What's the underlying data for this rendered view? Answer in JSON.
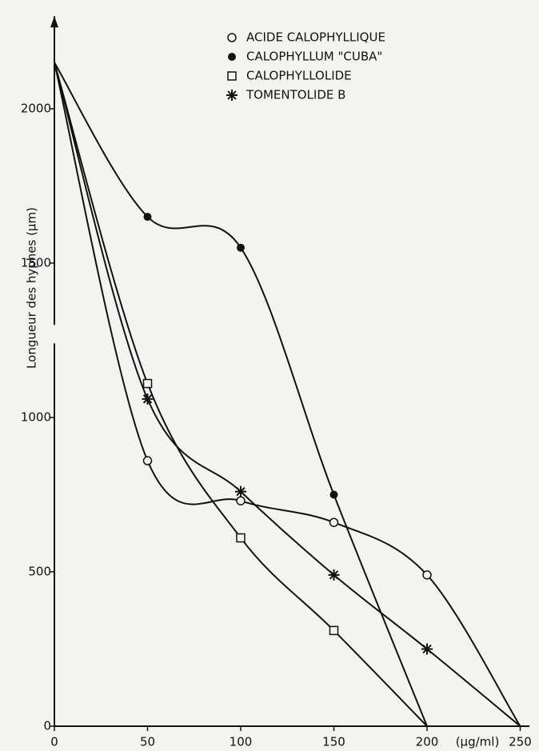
{
  "chart_data": {
    "type": "line",
    "x_label": "(µg/ml)",
    "y_label": "Longueur des hyphes (µm)",
    "xlim": [
      0,
      255
    ],
    "ylim": [
      0,
      2300
    ],
    "xticks": [
      0,
      50,
      100,
      150,
      200,
      250
    ],
    "yticks": [
      0,
      500,
      1000,
      1500,
      2000
    ],
    "series": [
      {
        "name": "ACIDE CALOPHYLLIQUE",
        "color": "#111111",
        "marker": "open-circle",
        "x": [
          0,
          50,
          100,
          150,
          200,
          250
        ],
        "values": [
          2150,
          860,
          730,
          660,
          490,
          0
        ]
      },
      {
        "name": "CALOPHYLLUM \"CUBA\"",
        "color": "#111111",
        "marker": "filled-circle",
        "x": [
          0,
          50,
          100,
          150,
          200
        ],
        "values": [
          2150,
          1650,
          1550,
          750,
          0
        ]
      },
      {
        "name": "CALOPHYLLOLIDE",
        "color": "#111111",
        "marker": "open-square",
        "x": [
          0,
          50,
          100,
          150,
          200
        ],
        "values": [
          2150,
          1110,
          610,
          310,
          0
        ]
      },
      {
        "name": "TOMENTOLIDE B",
        "color": "#111111",
        "marker": "star",
        "x": [
          0,
          50,
          100,
          150,
          200,
          250
        ],
        "values": [
          2150,
          1060,
          760,
          490,
          250,
          0
        ]
      }
    ]
  }
}
